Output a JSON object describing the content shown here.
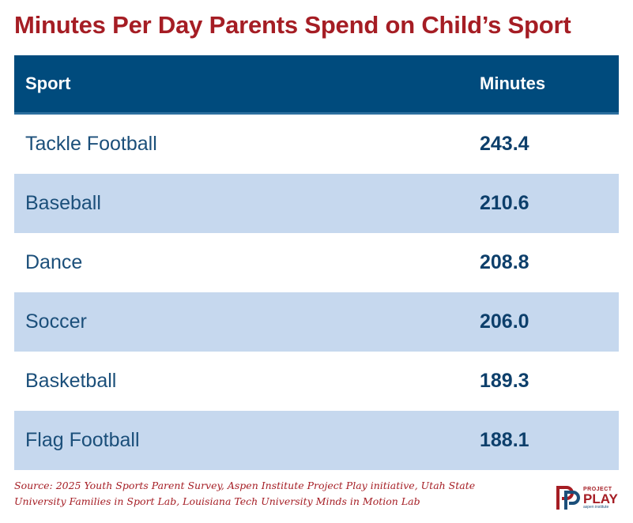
{
  "title": "Minutes Per Day Parents Spend on Child’s Sport",
  "chart_data": {
    "type": "table",
    "columns": [
      "Sport",
      "Minutes"
    ],
    "rows": [
      {
        "sport": "Tackle Football",
        "minutes": "243.4"
      },
      {
        "sport": "Baseball",
        "minutes": "210.6"
      },
      {
        "sport": "Dance",
        "minutes": "208.8"
      },
      {
        "sport": "Soccer",
        "minutes": "206.0"
      },
      {
        "sport": "Basketball",
        "minutes": "189.3"
      },
      {
        "sport": "Flag Football",
        "minutes": "188.1"
      }
    ]
  },
  "source": "Source: 2025 Youth Sports Parent Survey, Aspen Institute Project Play initiative, Utah State University Families in Sport Lab, Louisiana Tech University Minds in Motion Lab",
  "logo": {
    "line1": "PROJECT",
    "line2": "PLAY",
    "line3": "aspen institute"
  },
  "colors": {
    "title": "#a51d24",
    "header_bg": "#004b7d",
    "band": "#c6d8ee",
    "text": "#1b4f7a"
  }
}
